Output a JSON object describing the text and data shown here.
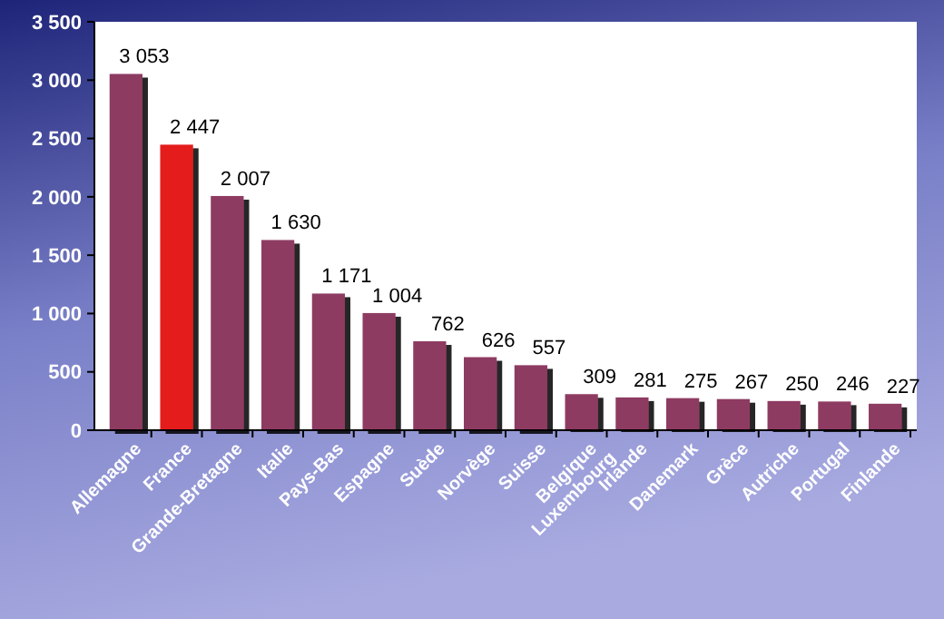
{
  "chart_data": {
    "type": "bar",
    "categories": [
      "Allemagne",
      "France",
      "Grande-Bretagne",
      "Italie",
      "Pays-Bas",
      "Espagne",
      "Suède",
      "Norvège",
      "Suisse",
      "Belgique\nLuxembourg",
      "Irlande",
      "Danemark",
      "Grèce",
      "Autriche",
      "Portugal",
      "Finlande"
    ],
    "values": [
      3053,
      2447,
      2007,
      1630,
      1171,
      1004,
      762,
      626,
      557,
      309,
      281,
      275,
      267,
      250,
      246,
      227
    ],
    "colors": [
      "#8e3a62",
      "#e41c1c",
      "#8e3a62",
      "#8e3a62",
      "#8e3a62",
      "#8e3a62",
      "#8e3a62",
      "#8e3a62",
      "#8e3a62",
      "#8e3a62",
      "#8e3a62",
      "#8e3a62",
      "#8e3a62",
      "#8e3a62",
      "#8e3a62",
      "#8e3a62"
    ],
    "value_labels": [
      "3 053",
      "2 447",
      "2 007",
      "1 630",
      "1 171",
      "1 004",
      "762",
      "626",
      "557",
      "309",
      "281",
      "275",
      "267",
      "250",
      "246",
      "227"
    ],
    "ylim": [
      0,
      3500
    ],
    "yticks": [
      {
        "value": 0,
        "label": "0"
      },
      {
        "value": 500,
        "label": "500"
      },
      {
        "value": 1000,
        "label": "1 000"
      },
      {
        "value": 1500,
        "label": "1 500"
      },
      {
        "value": 2000,
        "label": "2 000"
      },
      {
        "value": 2500,
        "label": "2 500"
      },
      {
        "value": 3000,
        "label": "3 000"
      },
      {
        "value": 3500,
        "label": "3 500"
      }
    ],
    "grid": false
  }
}
